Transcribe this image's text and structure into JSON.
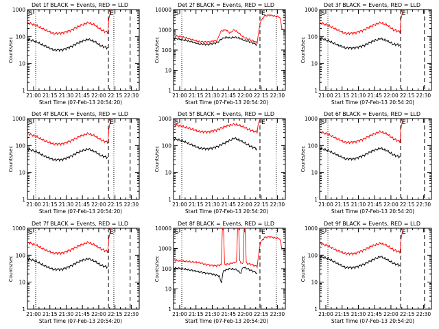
{
  "colors": {
    "events": "#000000",
    "lld": "#ff0000",
    "axis": "#000000",
    "background": "#ffffff"
  },
  "shared": {
    "xlabel": "Start Time (07-Feb-13 20:54:20)",
    "ylabel": "Counts/sec",
    "x_tick_labels": [
      "21:00",
      "21:15",
      "21:30",
      "21:45",
      "22:00",
      "22:15",
      "22:30"
    ],
    "x_tick_minutes": [
      5.67,
      20.67,
      35.67,
      50.67,
      65.67,
      80.67,
      95.67
    ],
    "y_tick_labels": [
      "1",
      "10",
      "100",
      "1000",
      "10000"
    ],
    "y_tick_values": [
      1,
      10,
      100,
      1000,
      10000
    ],
    "marker_s": "S",
    "marker_e": "E",
    "x_unit_note": "minutes after 20:54:20"
  },
  "chart_data": [
    {
      "type": "line",
      "title": "Det 1f BLACK = Events, RED = LLD",
      "xlim": [
        0,
        103
      ],
      "ylim": [
        1,
        1000
      ],
      "y_scale": "log",
      "dotted_lines_x": [
        7.6,
        79.6
      ],
      "dashed_lines_x": [
        74.6,
        94.6
      ],
      "series": [
        {
          "name": "Events",
          "color": "#000000",
          "x": [
            0,
            8,
            16,
            24,
            32,
            40,
            48,
            56,
            62,
            68,
            72,
            74
          ],
          "y": [
            80,
            65,
            45,
            32,
            32,
            42,
            62,
            80,
            65,
            45,
            40,
            38
          ]
        },
        {
          "name": "LLD",
          "color": "#ff0000",
          "x": [
            0,
            8,
            16,
            24,
            32,
            40,
            48,
            56,
            62,
            68,
            72,
            74,
            75,
            77
          ],
          "y": [
            330,
            260,
            180,
            130,
            135,
            170,
            250,
            330,
            270,
            180,
            150,
            140,
            450,
            1000
          ]
        }
      ]
    },
    {
      "type": "line",
      "title": "Det 2f BLACK = Events, RED = LLD",
      "xlim": [
        0,
        103
      ],
      "ylim": [
        1,
        10000
      ],
      "y_scale": "log",
      "dotted_lines_x": [
        7.6,
        94.6
      ],
      "dashed_lines_x": [
        79.6
      ],
      "series": [
        {
          "name": "Events",
          "color": "#000000",
          "x": [
            0,
            8,
            16,
            24,
            32,
            40,
            44,
            48,
            52,
            56,
            60,
            64,
            68,
            72,
            77
          ],
          "y": [
            380,
            330,
            260,
            200,
            190,
            230,
            350,
            430,
            400,
            430,
            400,
            320,
            280,
            240,
            180
          ]
        },
        {
          "name": "LLD",
          "color": "#ff0000",
          "x": [
            0,
            8,
            16,
            24,
            32,
            40,
            44,
            48,
            52,
            56,
            60,
            64,
            68,
            72,
            77,
            80,
            84,
            88,
            92,
            98,
            100
          ],
          "y": [
            520,
            450,
            340,
            260,
            250,
            300,
            900,
            1000,
            700,
            1000,
            700,
            450,
            360,
            310,
            230,
            2500,
            5000,
            5300,
            5000,
            4200,
            1000
          ]
        }
      ]
    },
    {
      "type": "line",
      "title": "Det 3f BLACK = Events, RED = LLD",
      "xlim": [
        0,
        103
      ],
      "ylim": [
        1,
        1000
      ],
      "y_scale": "log",
      "dotted_lines_x": [
        7.6
      ],
      "dashed_lines_x": [
        74.6,
        96.6
      ],
      "series": [
        {
          "name": "Events",
          "color": "#000000",
          "x": [
            0,
            8,
            16,
            24,
            32,
            40,
            48,
            56,
            62,
            68,
            72,
            74
          ],
          "y": [
            90,
            70,
            50,
            38,
            38,
            45,
            65,
            85,
            70,
            52,
            50,
            48
          ]
        },
        {
          "name": "LLD",
          "color": "#ff0000",
          "x": [
            0,
            8,
            16,
            24,
            32,
            40,
            48,
            56,
            62,
            68,
            72,
            74,
            75,
            77
          ],
          "y": [
            330,
            260,
            180,
            130,
            135,
            170,
            250,
            330,
            270,
            180,
            160,
            150,
            450,
            1000
          ]
        }
      ]
    },
    {
      "type": "line",
      "title": "Det 4f BLACK = Events, RED = LLD",
      "xlim": [
        0,
        103
      ],
      "ylim": [
        1,
        1000
      ],
      "y_scale": "log",
      "dotted_lines_x": [
        7.6,
        79.6
      ],
      "dashed_lines_x": [
        74.6,
        94.6
      ],
      "series": [
        {
          "name": "Events",
          "color": "#000000",
          "x": [
            0,
            8,
            16,
            24,
            32,
            40,
            48,
            56,
            62,
            68,
            72,
            74
          ],
          "y": [
            75,
            60,
            40,
            30,
            30,
            40,
            60,
            75,
            60,
            42,
            38,
            36
          ]
        },
        {
          "name": "LLD",
          "color": "#ff0000",
          "x": [
            0,
            8,
            16,
            24,
            32,
            40,
            48,
            56,
            62,
            68,
            72,
            74,
            75,
            77
          ],
          "y": [
            280,
            220,
            150,
            115,
            115,
            150,
            220,
            280,
            230,
            160,
            140,
            130,
            400,
            1000
          ]
        }
      ]
    },
    {
      "type": "line",
      "title": "Det 5f BLACK = Events, RED = LLD",
      "xlim": [
        0,
        103
      ],
      "ylim": [
        1,
        1000
      ],
      "y_scale": "log",
      "dotted_lines_x": [
        7.6,
        94.6
      ],
      "dashed_lines_x": [
        79.6
      ],
      "series": [
        {
          "name": "Events",
          "color": "#000000",
          "x": [
            0,
            8,
            16,
            24,
            32,
            40,
            48,
            56,
            62,
            68,
            72,
            77
          ],
          "y": [
            180,
            150,
            110,
            80,
            75,
            90,
            130,
            190,
            150,
            110,
            90,
            75
          ]
        },
        {
          "name": "LLD",
          "color": "#ff0000",
          "x": [
            0,
            8,
            16,
            24,
            32,
            40,
            48,
            56,
            62,
            68,
            72,
            77,
            78,
            80
          ],
          "y": [
            600,
            520,
            420,
            330,
            320,
            380,
            520,
            620,
            540,
            420,
            360,
            320,
            600,
            1000
          ]
        }
      ]
    },
    {
      "type": "line",
      "title": "Det 6f BLACK = Events, RED = LLD",
      "xlim": [
        0,
        103
      ],
      "ylim": [
        1,
        1000
      ],
      "y_scale": "log",
      "dotted_lines_x": [
        7.6
      ],
      "dashed_lines_x": [
        74.6,
        96.6
      ],
      "series": [
        {
          "name": "Events",
          "color": "#000000",
          "x": [
            0,
            8,
            16,
            24,
            32,
            40,
            48,
            56,
            62,
            68,
            72,
            74
          ],
          "y": [
            80,
            65,
            45,
            32,
            32,
            42,
            62,
            80,
            65,
            45,
            40,
            38
          ]
        },
        {
          "name": "LLD",
          "color": "#ff0000",
          "x": [
            0,
            8,
            16,
            24,
            32,
            40,
            48,
            56,
            62,
            68,
            72,
            74,
            75,
            77
          ],
          "y": [
            330,
            260,
            180,
            130,
            135,
            170,
            250,
            330,
            270,
            180,
            150,
            140,
            450,
            1000
          ]
        }
      ]
    },
    {
      "type": "line",
      "title": "Det 7f BLACK = Events, RED = LLD",
      "xlim": [
        0,
        103
      ],
      "ylim": [
        1,
        1000
      ],
      "y_scale": "log",
      "dotted_lines_x": [
        7.6,
        79.6
      ],
      "dashed_lines_x": [
        74.6,
        94.6
      ],
      "series": [
        {
          "name": "Events",
          "color": "#000000",
          "x": [
            0,
            8,
            16,
            24,
            32,
            40,
            48,
            56,
            62,
            68,
            72,
            74
          ],
          "y": [
            75,
            60,
            40,
            30,
            30,
            40,
            60,
            75,
            60,
            42,
            38,
            36
          ]
        },
        {
          "name": "LLD",
          "color": "#ff0000",
          "x": [
            0,
            8,
            16,
            24,
            32,
            40,
            48,
            56,
            62,
            68,
            72,
            74,
            75,
            77
          ],
          "y": [
            300,
            240,
            160,
            120,
            120,
            160,
            230,
            300,
            240,
            170,
            145,
            135,
            420,
            1000
          ]
        }
      ]
    },
    {
      "type": "line",
      "title": "Det 8f BLACK = Events, RED = LLD",
      "xlim": [
        0,
        103
      ],
      "ylim": [
        1,
        10000
      ],
      "y_scale": "log",
      "dotted_lines_x": [
        7.6,
        94.6
      ],
      "dashed_lines_x": [
        79.6
      ],
      "series": [
        {
          "name": "Events",
          "color": "#000000",
          "x": [
            0,
            8,
            16,
            24,
            30,
            34,
            38,
            42,
            44,
            46,
            52,
            58,
            62,
            64,
            68,
            72,
            77
          ],
          "y": [
            110,
            100,
            85,
            70,
            60,
            58,
            50,
            45,
            20,
            80,
            100,
            90,
            60,
            120,
            100,
            80,
            60
          ]
        },
        {
          "name": "LLD",
          "color": "#ff0000",
          "x": [
            0,
            8,
            16,
            24,
            30,
            34,
            38,
            42,
            44,
            45,
            46,
            47,
            48,
            52,
            56,
            58,
            59,
            60,
            61,
            62,
            64,
            65,
            66,
            67,
            68,
            72,
            77,
            80,
            84,
            88,
            92,
            98,
            100
          ],
          "y": [
            260,
            240,
            220,
            200,
            160,
            150,
            140,
            150,
            160,
            10000,
            10000,
            170,
            160,
            180,
            200,
            220,
            10000,
            10000,
            230,
            200,
            180,
            10000,
            10000,
            200,
            180,
            160,
            130,
            2000,
            3500,
            3800,
            3500,
            3000,
            800
          ]
        }
      ]
    },
    {
      "type": "line",
      "title": "Det 9f BLACK = Events, RED = LLD",
      "xlim": [
        0,
        103
      ],
      "ylim": [
        1,
        1000
      ],
      "y_scale": "log",
      "dotted_lines_x": [
        7.6
      ],
      "dashed_lines_x": [
        74.6,
        96.6
      ],
      "series": [
        {
          "name": "Events",
          "color": "#000000",
          "x": [
            0,
            8,
            16,
            24,
            32,
            40,
            48,
            56,
            62,
            68,
            72,
            74
          ],
          "y": [
            90,
            75,
            50,
            35,
            35,
            45,
            65,
            90,
            70,
            50,
            45,
            42
          ]
        },
        {
          "name": "LLD",
          "color": "#ff0000",
          "x": [
            0,
            8,
            16,
            24,
            32,
            40,
            48,
            56,
            62,
            68,
            72,
            74,
            75,
            77
          ],
          "y": [
            280,
            220,
            150,
            115,
            115,
            150,
            220,
            280,
            230,
            160,
            140,
            130,
            400,
            1000
          ]
        }
      ]
    }
  ]
}
